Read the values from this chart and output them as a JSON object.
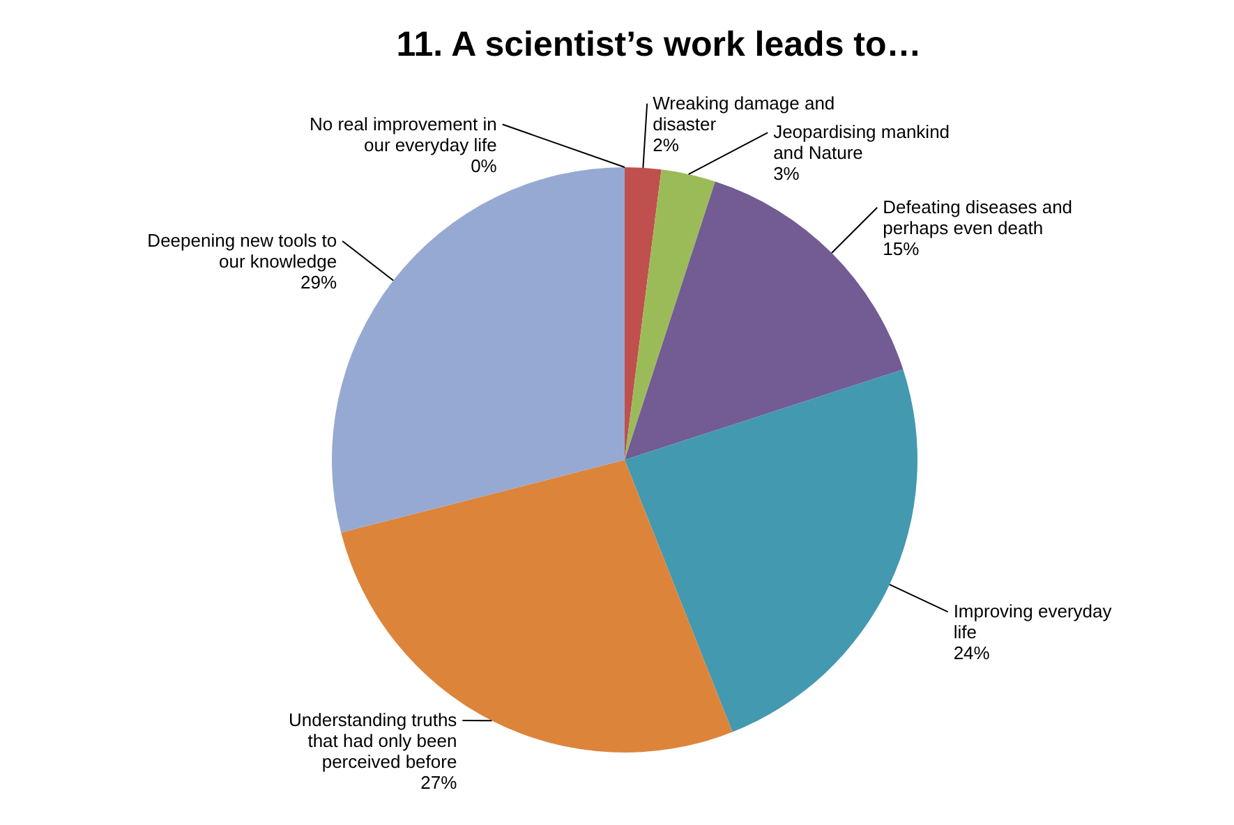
{
  "chart_data": {
    "type": "pie",
    "title": "11. A scientist’s work leads to…",
    "categories": [
      "No real improvement in our everyday life",
      "Wreaking damage and disaster",
      "Jeopardising mankind and Nature",
      "Defeating diseases and perhaps even death",
      "Improving everyday life",
      "Understanding truths that had only been perceived before",
      "Deepening new tools to our knowledge"
    ],
    "values": [
      0,
      2,
      3,
      15,
      24,
      27,
      29
    ],
    "value_labels": [
      "0%",
      "2%",
      "3%",
      "15%",
      "24%",
      "27%",
      "29%"
    ],
    "colors": [
      "#3f6fb5",
      "#c0504d",
      "#9bbb59",
      "#735b94",
      "#4399b0",
      "#dd843b",
      "#95a9d2"
    ]
  }
}
